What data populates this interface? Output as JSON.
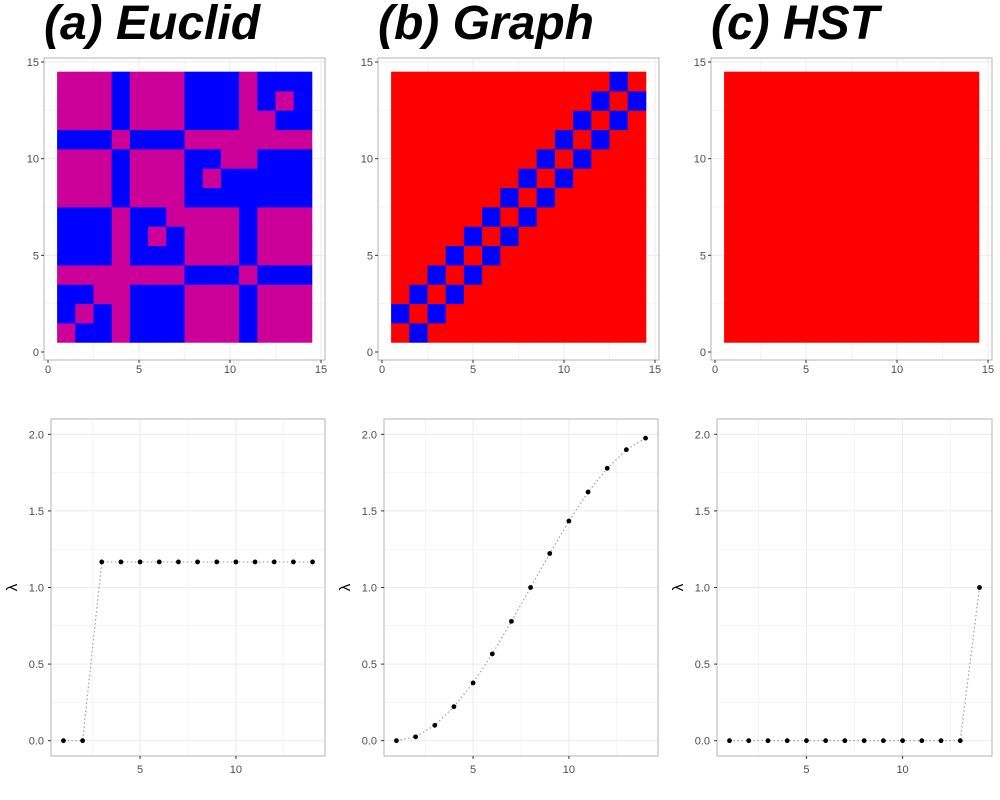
{
  "panels": [
    {
      "title": "(a) Euclid"
    },
    {
      "title": "(b) Graph"
    },
    {
      "title": "(c) HST"
    }
  ],
  "colors": {
    "blue": "#0000ff",
    "magenta": "#cc0099",
    "red": "#ff0000",
    "grid": "#ebebeb",
    "frame": "#b3b3b3",
    "point": "#000000",
    "line": "#a0a0a0"
  },
  "chart_data": [
    {
      "type": "heatmap",
      "panel": "(a) Euclid",
      "xlim": [
        0,
        15
      ],
      "ylim": [
        0,
        15
      ],
      "x_ticks": [
        0,
        5,
        10,
        15
      ],
      "y_ticks": [
        0,
        5,
        10,
        15
      ],
      "grid": true,
      "legend": {
        "1": "magenta",
        "0": "blue"
      },
      "matrix_description": "rows listed from y=14 (top) down to y=1 (bottom); columns x=1..14",
      "matrix": [
        [
          1,
          1,
          1,
          0,
          1,
          1,
          1,
          0,
          0,
          0,
          1,
          0,
          0,
          0
        ],
        [
          1,
          1,
          1,
          0,
          1,
          1,
          1,
          0,
          0,
          0,
          1,
          0,
          1,
          0
        ],
        [
          1,
          1,
          1,
          0,
          1,
          1,
          1,
          0,
          0,
          0,
          1,
          1,
          0,
          0
        ],
        [
          0,
          0,
          0,
          1,
          0,
          0,
          0,
          1,
          1,
          1,
          1,
          1,
          1,
          1
        ],
        [
          1,
          1,
          1,
          0,
          1,
          1,
          1,
          0,
          0,
          1,
          1,
          0,
          0,
          0
        ],
        [
          1,
          1,
          1,
          0,
          1,
          1,
          1,
          0,
          1,
          0,
          0,
          0,
          0,
          0
        ],
        [
          1,
          1,
          1,
          0,
          1,
          1,
          1,
          0,
          0,
          0,
          0,
          0,
          0,
          0
        ],
        [
          0,
          0,
          0,
          1,
          0,
          0,
          1,
          1,
          1,
          1,
          0,
          1,
          1,
          1
        ],
        [
          0,
          0,
          0,
          1,
          0,
          1,
          0,
          1,
          1,
          1,
          0,
          1,
          1,
          1
        ],
        [
          0,
          0,
          0,
          1,
          0,
          0,
          0,
          1,
          1,
          1,
          0,
          1,
          1,
          1
        ],
        [
          1,
          1,
          1,
          1,
          1,
          1,
          1,
          0,
          0,
          0,
          1,
          0,
          0,
          0
        ],
        [
          0,
          0,
          1,
          1,
          0,
          0,
          0,
          1,
          1,
          1,
          0,
          1,
          1,
          1
        ],
        [
          0,
          1,
          0,
          1,
          0,
          0,
          0,
          1,
          1,
          1,
          0,
          1,
          1,
          1
        ],
        [
          1,
          0,
          0,
          1,
          0,
          0,
          0,
          1,
          1,
          1,
          0,
          1,
          1,
          1
        ]
      ]
    },
    {
      "type": "heatmap",
      "panel": "(b) Graph",
      "xlim": [
        0,
        15
      ],
      "ylim": [
        0,
        15
      ],
      "x_ticks": [
        0,
        5,
        10,
        15
      ],
      "y_ticks": [
        0,
        5,
        10,
        15
      ],
      "grid": true,
      "legend": {
        "|i-j|=1": "blue",
        "other": "red"
      },
      "pattern": "cells where |x - y| = 1 are blue, all others red",
      "size": 14
    },
    {
      "type": "heatmap",
      "panel": "(c) HST",
      "xlim": [
        0,
        15
      ],
      "ylim": [
        0,
        15
      ],
      "x_ticks": [
        0,
        5,
        10,
        15
      ],
      "y_ticks": [
        0,
        5,
        10,
        15
      ],
      "grid": true,
      "pattern": "all cells red",
      "size": 14
    },
    {
      "type": "scatter",
      "panel": "(a) Euclid",
      "ylabel": "λ",
      "x": [
        1,
        2,
        3,
        4,
        5,
        6,
        7,
        8,
        9,
        10,
        11,
        12,
        13,
        14
      ],
      "y": [
        0,
        0,
        1.167,
        1.167,
        1.167,
        1.167,
        1.167,
        1.167,
        1.167,
        1.167,
        1.167,
        1.167,
        1.167,
        1.167
      ],
      "xlim": [
        0.35,
        14.65
      ],
      "ylim": [
        -0.1,
        2.1
      ],
      "x_ticks": [
        5,
        10
      ],
      "y_ticks": [
        0.0,
        0.5,
        1.0,
        1.5,
        2.0
      ],
      "y_tick_labels": [
        "0.0",
        "0.5",
        "1.0",
        "1.5",
        "2.0"
      ],
      "connecting_line": "dotted",
      "grid": true
    },
    {
      "type": "scatter",
      "panel": "(b) Graph",
      "ylabel": "λ",
      "x": [
        1,
        2,
        3,
        4,
        5,
        6,
        7,
        8,
        9,
        10,
        11,
        12,
        13,
        14
      ],
      "y": [
        0,
        0.025,
        0.1,
        0.222,
        0.377,
        0.566,
        0.779,
        1.0,
        1.222,
        1.434,
        1.623,
        1.778,
        1.9,
        1.975
      ],
      "xlim": [
        0.35,
        14.65
      ],
      "ylim": [
        -0.1,
        2.1
      ],
      "x_ticks": [
        5,
        10
      ],
      "y_ticks": [
        0.0,
        0.5,
        1.0,
        1.5,
        2.0
      ],
      "y_tick_labels": [
        "0.0",
        "0.5",
        "1.0",
        "1.5",
        "2.0"
      ],
      "connecting_line": "dotted",
      "grid": true
    },
    {
      "type": "scatter",
      "panel": "(c) HST",
      "ylabel": "λ",
      "x": [
        1,
        2,
        3,
        4,
        5,
        6,
        7,
        8,
        9,
        10,
        11,
        12,
        13,
        14
      ],
      "y": [
        0,
        0,
        0,
        0,
        0,
        0,
        0,
        0,
        0,
        0,
        0,
        0,
        0,
        1.0
      ],
      "xlim": [
        0.35,
        14.65
      ],
      "ylim": [
        -0.1,
        2.1
      ],
      "x_ticks": [
        5,
        10
      ],
      "y_ticks": [
        0.0,
        0.5,
        1.0,
        1.5,
        2.0
      ],
      "y_tick_labels": [
        "0.0",
        "0.5",
        "1.0",
        "1.5",
        "2.0"
      ],
      "connecting_line": "dotted",
      "grid": true
    }
  ]
}
